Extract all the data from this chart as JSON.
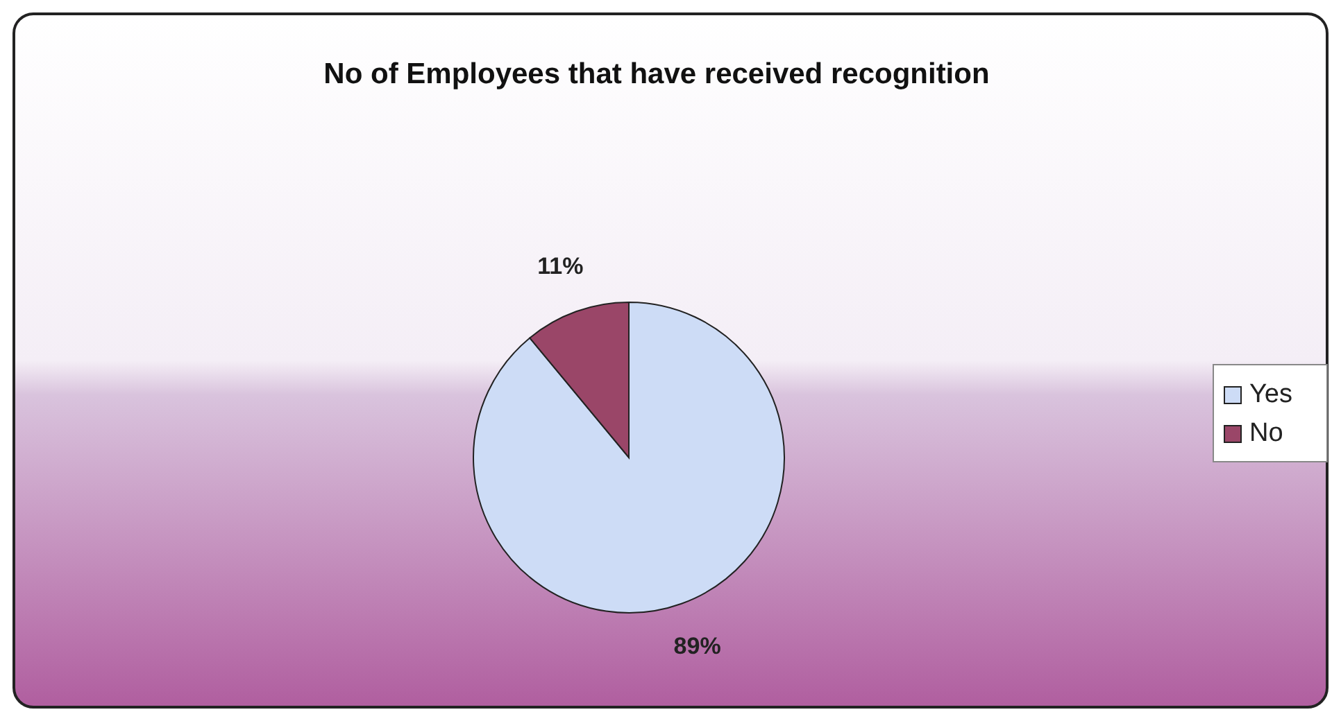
{
  "chart_data": {
    "type": "pie",
    "title": "No of Employees that have received recognition",
    "categories": [
      "Yes",
      "No"
    ],
    "values": [
      89,
      11
    ],
    "colors": [
      "#cddcf6",
      "#9a4668"
    ],
    "value_labels": [
      "89%",
      "11%"
    ],
    "legend": "right"
  }
}
